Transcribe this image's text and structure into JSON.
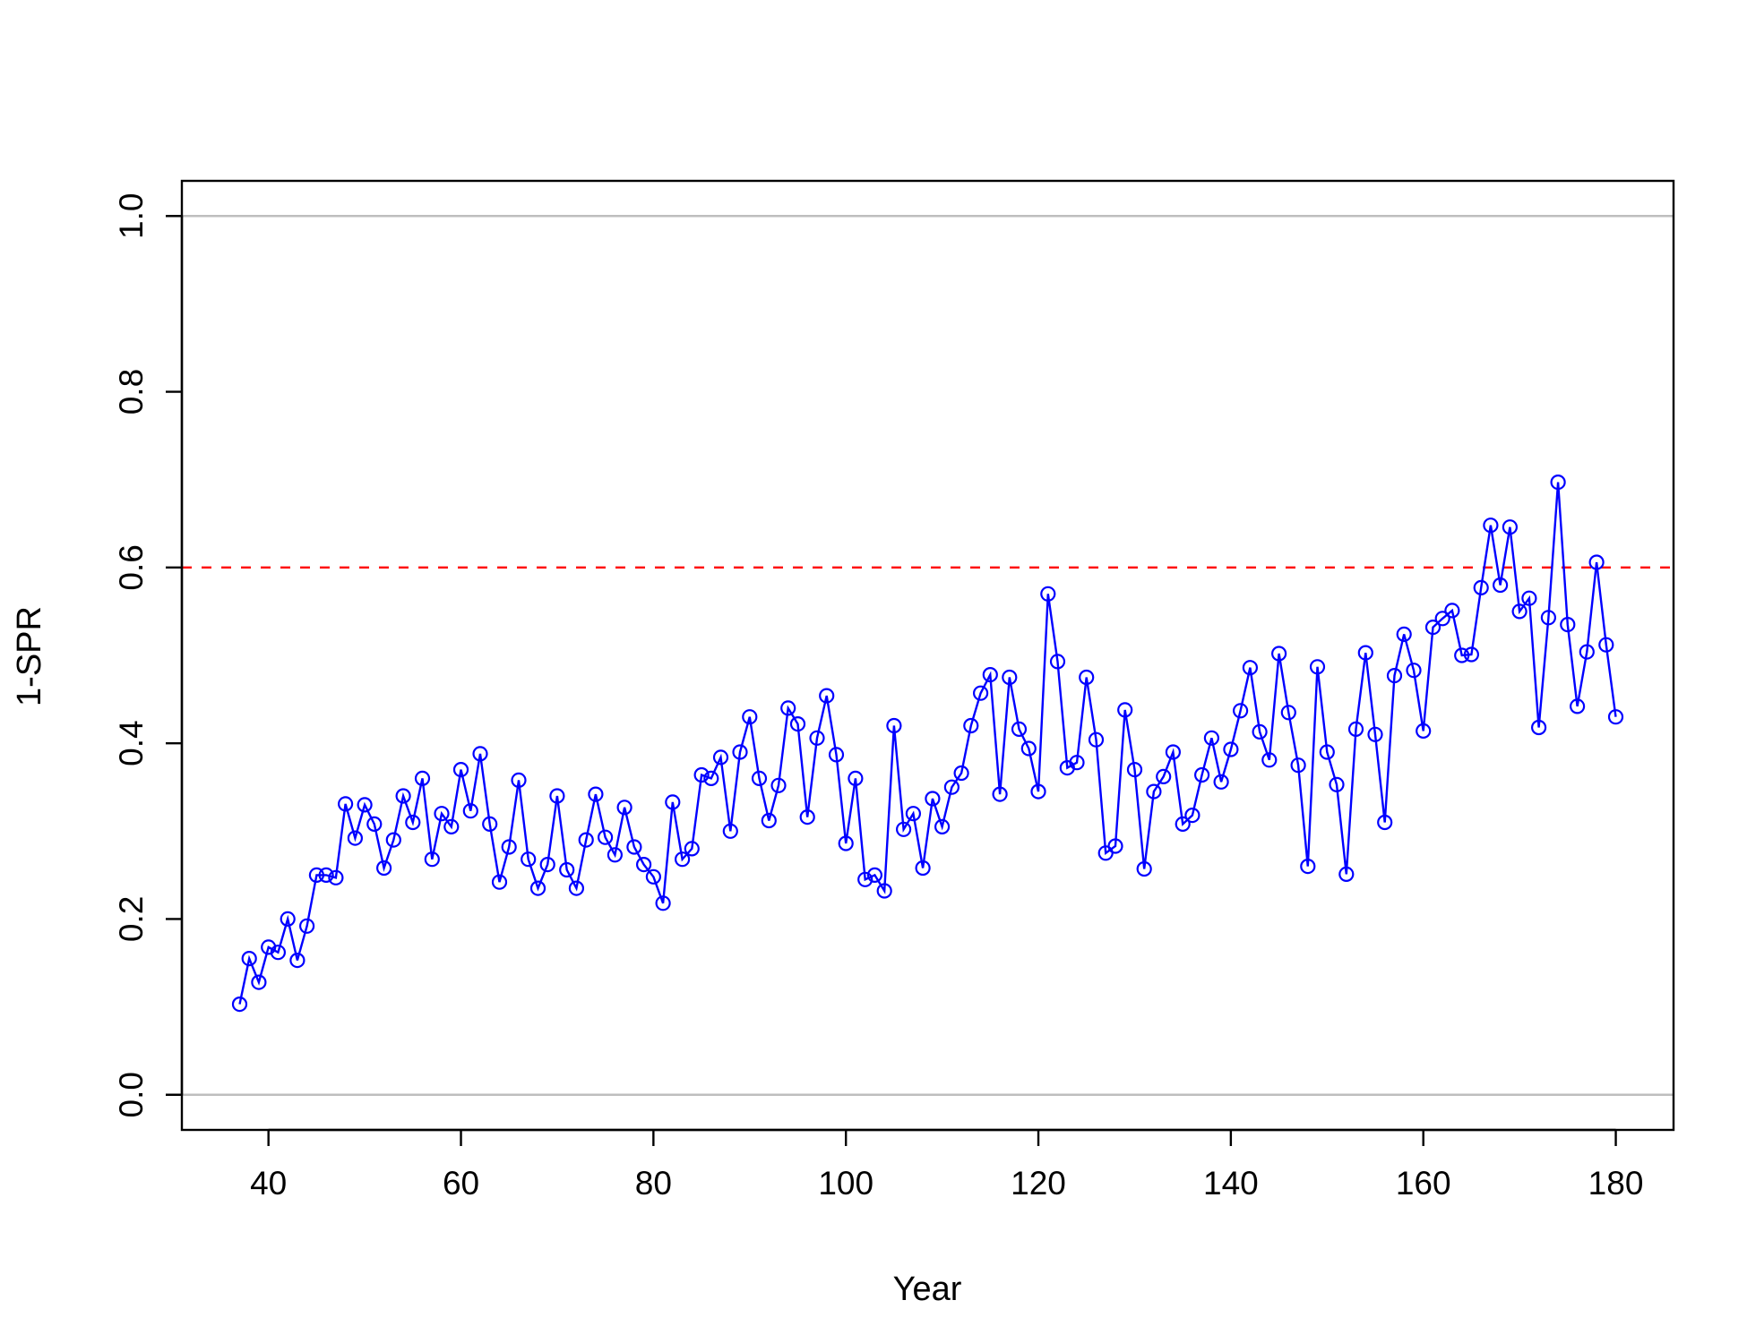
{
  "chart_data": {
    "type": "line",
    "title": "",
    "xlabel": "Year",
    "ylabel": "1-SPR",
    "xlim": [
      31,
      186
    ],
    "ylim": [
      -0.04,
      1.04
    ],
    "x_ticks": [
      40,
      60,
      80,
      100,
      120,
      140,
      160,
      180
    ],
    "y_ticks": [
      0.0,
      0.2,
      0.4,
      0.6,
      0.8,
      1.0
    ],
    "x_tick_labels": [
      "40",
      "60",
      "80",
      "100",
      "120",
      "140",
      "160",
      "180"
    ],
    "y_tick_labels": [
      "0.0",
      "0.2",
      "0.4",
      "0.6",
      "0.8",
      "1.0"
    ],
    "reference_lines": [
      {
        "y": 0.0,
        "color": "#bebebe",
        "style": "solid"
      },
      {
        "y": 1.0,
        "color": "#bebebe",
        "style": "solid"
      },
      {
        "y": 0.6,
        "color": "#ff0000",
        "style": "dashed"
      }
    ],
    "series": [
      {
        "color": "#0000ff",
        "marker": "open-circle",
        "x": [
          37,
          38,
          39,
          40,
          41,
          42,
          43,
          44,
          45,
          46,
          47,
          48,
          49,
          50,
          51,
          52,
          53,
          54,
          55,
          56,
          57,
          58,
          59,
          60,
          61,
          62,
          63,
          64,
          65,
          66,
          67,
          68,
          69,
          70,
          71,
          72,
          73,
          74,
          75,
          76,
          77,
          78,
          79,
          80,
          81,
          82,
          83,
          84,
          85,
          86,
          87,
          88,
          89,
          90,
          91,
          92,
          93,
          94,
          95,
          96,
          97,
          98,
          99,
          100,
          101,
          102,
          103,
          104,
          105,
          106,
          107,
          108,
          109,
          110,
          111,
          112,
          113,
          114,
          115,
          116,
          117,
          118,
          119,
          120,
          121,
          122,
          123,
          124,
          125,
          126,
          127,
          128,
          129,
          130,
          131,
          132,
          133,
          134,
          135,
          136,
          137,
          138,
          139,
          140,
          141,
          142,
          143,
          144,
          145,
          146,
          147,
          148,
          149,
          150,
          151,
          152,
          153,
          154,
          155,
          156,
          157,
          158,
          159,
          160,
          161,
          162,
          163,
          164,
          165,
          166,
          167,
          168,
          169,
          170,
          171,
          172,
          173,
          174,
          175,
          176,
          177,
          178,
          179,
          180
        ],
        "values": [
          0.103,
          0.155,
          0.128,
          0.168,
          0.162,
          0.2,
          0.153,
          0.192,
          0.25,
          0.25,
          0.247,
          0.331,
          0.292,
          0.33,
          0.308,
          0.258,
          0.29,
          0.34,
          0.31,
          0.36,
          0.268,
          0.32,
          0.305,
          0.37,
          0.323,
          0.388,
          0.308,
          0.242,
          0.282,
          0.358,
          0.268,
          0.235,
          0.262,
          0.34,
          0.256,
          0.235,
          0.29,
          0.342,
          0.293,
          0.273,
          0.327,
          0.282,
          0.262,
          0.248,
          0.218,
          0.333,
          0.268,
          0.28,
          0.364,
          0.36,
          0.384,
          0.3,
          0.39,
          0.43,
          0.36,
          0.312,
          0.352,
          0.44,
          0.422,
          0.316,
          0.406,
          0.454,
          0.387,
          0.286,
          0.36,
          0.245,
          0.25,
          0.232,
          0.42,
          0.302,
          0.32,
          0.258,
          0.337,
          0.305,
          0.35,
          0.366,
          0.42,
          0.457,
          0.478,
          0.342,
          0.475,
          0.416,
          0.394,
          0.345,
          0.57,
          0.493,
          0.372,
          0.378,
          0.475,
          0.404,
          0.275,
          0.283,
          0.438,
          0.37,
          0.257,
          0.345,
          0.362,
          0.39,
          0.308,
          0.318,
          0.364,
          0.406,
          0.356,
          0.393,
          0.437,
          0.486,
          0.413,
          0.381,
          0.502,
          0.435,
          0.375,
          0.26,
          0.487,
          0.39,
          0.353,
          0.251,
          0.416,
          0.503,
          0.41,
          0.31,
          0.477,
          0.524,
          0.483,
          0.414,
          0.532,
          0.542,
          0.551,
          0.5,
          0.501,
          0.577,
          0.648,
          0.58,
          0.646,
          0.55,
          0.565,
          0.418,
          0.543,
          0.697,
          0.535,
          0.442,
          0.504,
          0.606,
          0.512,
          0.43
        ]
      }
    ]
  }
}
